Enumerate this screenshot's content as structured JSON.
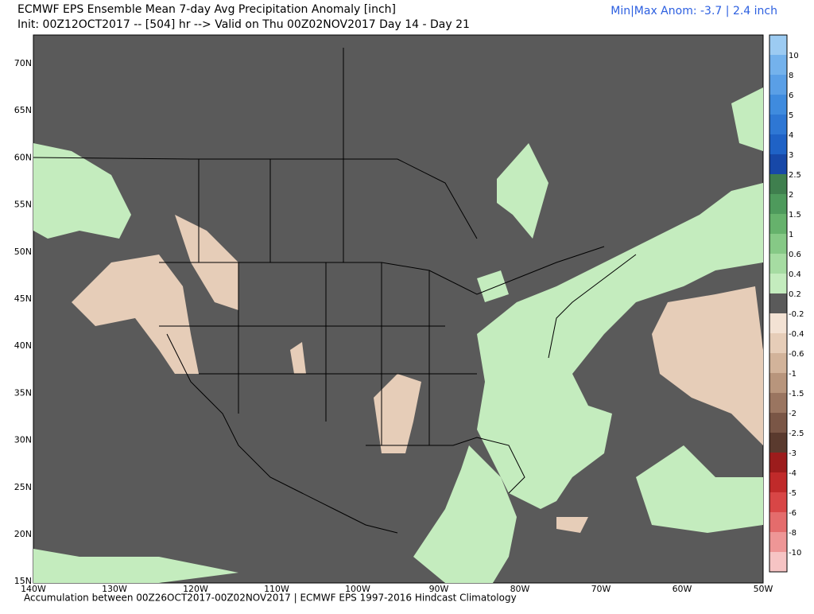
{
  "header": {
    "title": "ECMWF EPS Ensemble Mean 7-day Avg Precipitation Anomaly [inch]",
    "init": "Init: 00Z12OCT2017 -- [504] hr --> Valid on Thu 00Z02NOV2017  Day 14 - Day 21",
    "anom": "Min|Max Anom: -3.7 | 2.4 inch"
  },
  "footer": "Accumulation between 00Z26OCT2017-00Z02NOV2017 | ECMWF EPS 1997-2016 Hindcast Climatology",
  "lat_labels": [
    "70N",
    "65N",
    "60N",
    "55N",
    "50N",
    "45N",
    "40N",
    "35N",
    "30N",
    "25N",
    "20N",
    "15N"
  ],
  "lon_labels": [
    "140W",
    "130W",
    "120W",
    "110W",
    "100W",
    "90W",
    "80W",
    "70W",
    "60W",
    "50W"
  ],
  "colorbar": {
    "labels": [
      "10",
      "8",
      "6",
      "5",
      "4",
      "3",
      "2.5",
      "2",
      "1.5",
      "1",
      "0.6",
      "0.4",
      "0.2",
      "-0.2",
      "-0.4",
      "-0.6",
      "-1",
      "-1.5",
      "-2",
      "-2.5",
      "-3",
      "-4",
      "-5",
      "-6",
      "-8",
      "-10"
    ],
    "colors": [
      "#9ccbf2",
      "#74b2ec",
      "#5a9fe6",
      "#3f8bde",
      "#2e77d4",
      "#1f62c6",
      "#1748a8",
      "#3f7f4e",
      "#4e9a5c",
      "#66b26c",
      "#86c986",
      "#a6dca2",
      "#c4ecbe",
      "#5a5a5a",
      "#f3e2d4",
      "#e6cdb8",
      "#d2b39a",
      "#b8957c",
      "#9a7560",
      "#7a5646",
      "#5a3a2e",
      "#9c1c1c",
      "#c02a2a",
      "#d84646",
      "#e46c6c",
      "#ee9696",
      "#f6c4c4"
    ]
  }
}
